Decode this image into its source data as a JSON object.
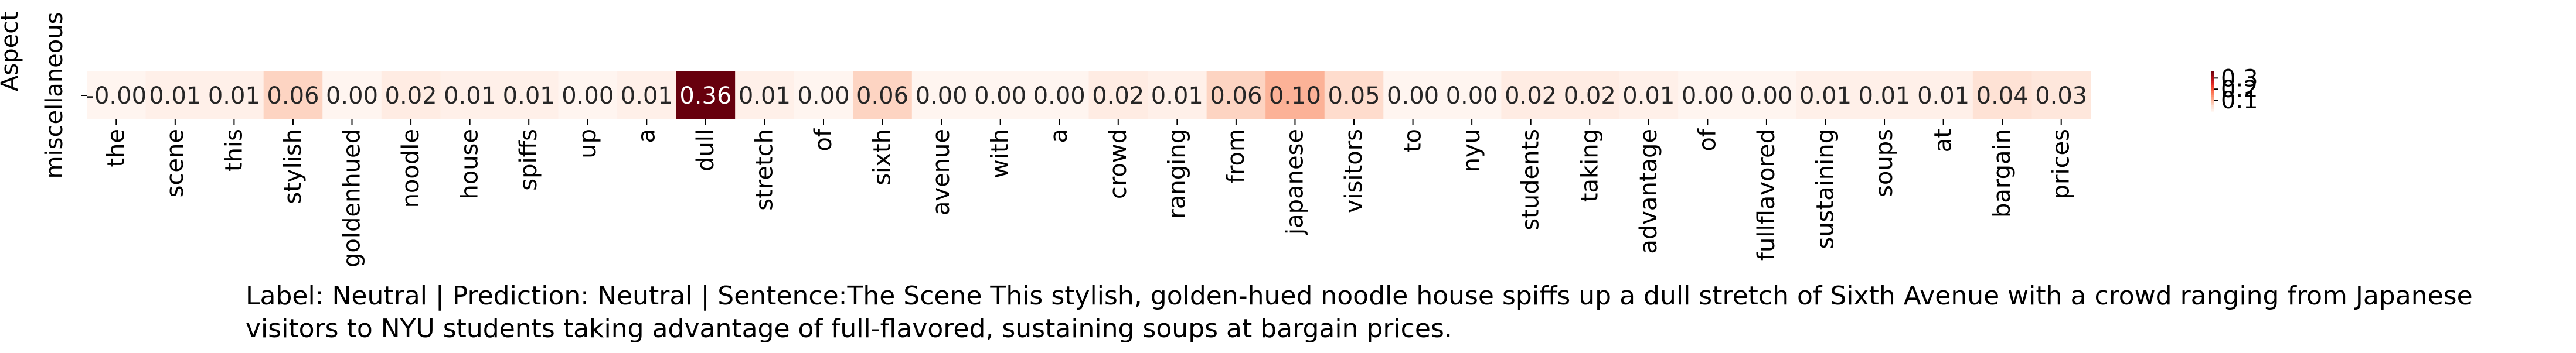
{
  "chart_data": {
    "type": "heatmap",
    "ylabel": "Aspect",
    "rows": [
      "miscellaneous"
    ],
    "columns": [
      "the",
      "scene",
      "this",
      "stylish",
      "goldenhued",
      "noodle",
      "house",
      "spiffs",
      "up",
      "a",
      "dull",
      "stretch",
      "of",
      "sixth",
      "avenue",
      "with",
      "a",
      "crowd",
      "ranging",
      "from",
      "japanese",
      "visitors",
      "to",
      "nyu",
      "students",
      "taking",
      "advantage",
      "of",
      "fullflavored",
      "sustaining",
      "soups",
      "at",
      "bargain",
      "prices"
    ],
    "values": [
      [
        -0.0,
        0.01,
        0.01,
        0.06,
        0.0,
        0.02,
        0.01,
        0.01,
        0.0,
        0.01,
        0.36,
        0.01,
        0.0,
        0.06,
        0.0,
        0.0,
        0.0,
        0.02,
        0.01,
        0.06,
        0.1,
        0.05,
        0.0,
        0.0,
        0.02,
        0.02,
        0.01,
        0.0,
        0.0,
        0.01,
        0.01,
        0.01,
        0.04,
        0.03
      ]
    ],
    "value_labels": [
      [
        "-0.00",
        "0.01",
        "0.01",
        "0.06",
        "0.00",
        "0.02",
        "0.01",
        "0.01",
        "0.00",
        "0.01",
        "0.36",
        "0.01",
        "0.00",
        "0.06",
        "0.00",
        "0.00",
        "0.00",
        "0.02",
        "0.01",
        "0.06",
        "0.10",
        "0.05",
        "0.00",
        "0.00",
        "0.02",
        "0.02",
        "0.01",
        "0.00",
        "0.00",
        "0.01",
        "0.01",
        "0.01",
        "0.04",
        "0.03"
      ]
    ],
    "colormap": "Reds",
    "color_range": [
      0,
      0.36
    ],
    "colorbar_ticks": [
      "0.3",
      "0.2",
      "0.1"
    ],
    "caption": "Label: Neutral | Prediction: Neutral | Sentence:The Scene This stylish, golden-hued noodle house spiffs up a dull stretch of Sixth Avenue with a crowd ranging from Japanese visitors to NYU students taking advantage of full-flavored, sustaining soups at bargain prices."
  }
}
